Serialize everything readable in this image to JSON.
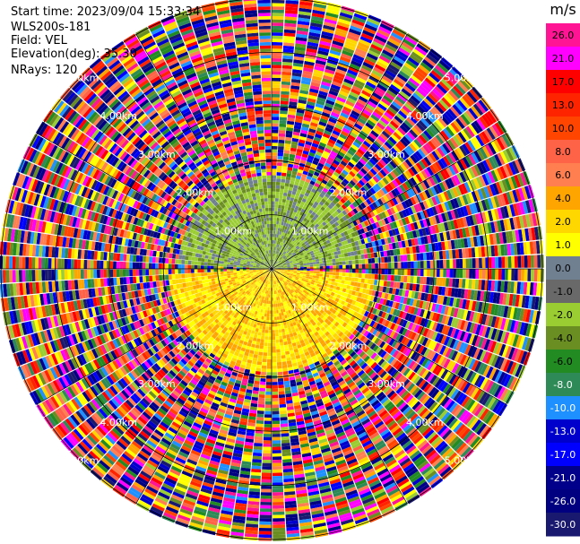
{
  "chart_data": {
    "type": "heatmap",
    "subtype": "polar-ppi",
    "header": {
      "start_time": "Start time: 2023/09/04 15:33:34",
      "station": "WLS200s-181",
      "field": "Field: VEL",
      "elevation": "Elevation(deg): 35.30",
      "nrays": "NRays: 120"
    },
    "rays": 120,
    "range_rings_km": [
      1,
      2,
      3,
      4,
      5
    ],
    "range_labels_ne": [
      "1.00km",
      "2.00km",
      "3.00km",
      "4.00km",
      "5.00km"
    ],
    "range_labels_nw": [
      "1.00km",
      "2.00km",
      "3.00km",
      "4.00km",
      "5.00km"
    ],
    "range_labels_se": [
      "1.00km",
      "2.00km",
      "3.00km",
      "4.00km",
      "5.00km"
    ],
    "range_labels_sw": [
      "1.00km",
      "2.00km",
      "3.00km",
      "4.00km",
      "5.00km"
    ],
    "max_range_km": 5,
    "colorbar": {
      "unit": "m/s",
      "tick_labels": [
        "26.0",
        "21.0",
        "17.0",
        "13.0",
        "10.0",
        "8.0",
        "6.0",
        "4.0",
        "2.0",
        "1.0",
        "0.0",
        "-1.0",
        "-2.0",
        "-4.0",
        "-6.0",
        "-8.0",
        "-10.0",
        "-13.0",
        "-17.0",
        "-21.0",
        "-26.0",
        "-30.0"
      ],
      "colors": [
        "#ff1493",
        "#ff00ff",
        "#ff0000",
        "#ff2400",
        "#ff4500",
        "#ff6347",
        "#ff7f50",
        "#ffa500",
        "#ffd700",
        "#ffff00",
        "#708090",
        "#696969",
        "#9acd32",
        "#6b8e23",
        "#228b22",
        "#2e8b57",
        "#1e90ff",
        "#0000cd",
        "#0000ff",
        "#00008b",
        "#000080",
        "#191970"
      ]
    },
    "legend_placement": "right",
    "grid": true
  }
}
